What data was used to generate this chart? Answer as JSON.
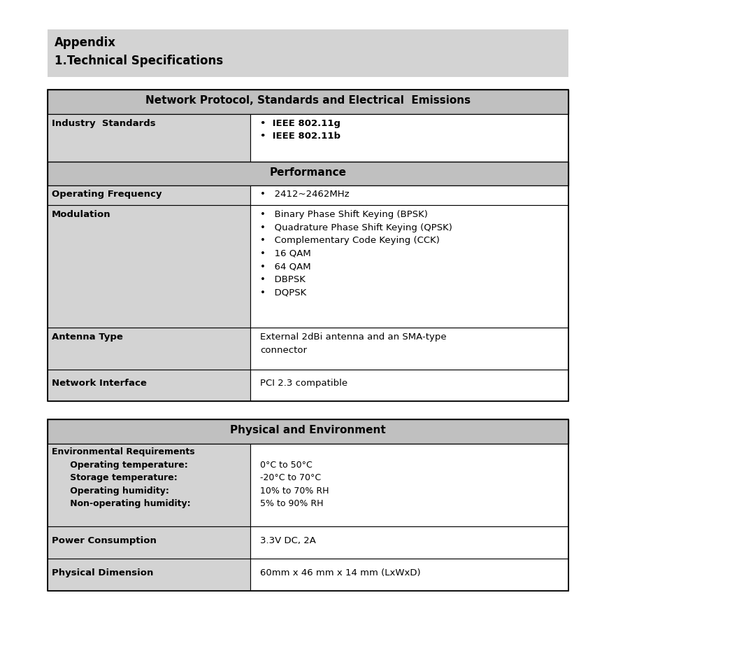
{
  "bg_color": "#ffffff",
  "title_bg": "#d3d3d3",
  "section_header_bg": "#c0c0c0",
  "row_label_bg": "#d3d3d3",
  "row_value_bg": "#ffffff",
  "border_color": "#000000",
  "title_line1": "Appendix",
  "title_line2": "1.Technical Specifications",
  "table1_header": "Network Protocol, Standards and Electrical  Emissions",
  "perf_header": "Performance",
  "table2_header": "Physical and Environment",
  "fig_w": 10.57,
  "fig_h": 9.3,
  "dpi": 100
}
